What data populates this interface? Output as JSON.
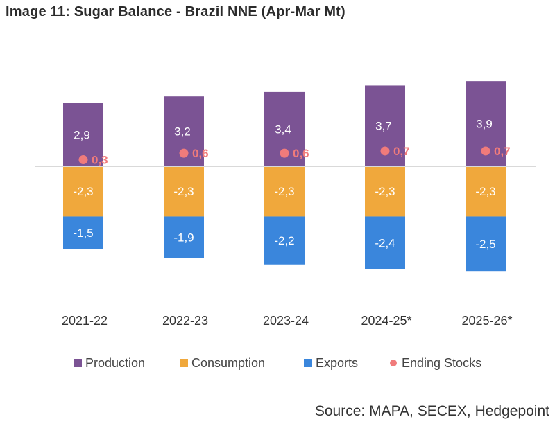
{
  "title": "Image 11: Sugar Balance - Brazil NNE (Apr-Mar Mt)",
  "source": "Source: MAPA, SECEX, Hedgepoint",
  "colors": {
    "production": "#7b5394",
    "consumption": "#f0a83c",
    "exports": "#3a86dc",
    "ending_stocks": "#f07b7b",
    "zero_line": "#d9d9d9"
  },
  "chart_data": {
    "type": "bar",
    "stacked": true,
    "categories": [
      "2021-22",
      "2022-23",
      "2023-24",
      "2024-25*",
      "2025-26*"
    ],
    "series": [
      {
        "name": "Production",
        "kind": "bar",
        "values": [
          2.9,
          3.2,
          3.4,
          3.7,
          3.9
        ],
        "labels": [
          "2,9",
          "3,2",
          "3,4",
          "3,7",
          "3,9"
        ]
      },
      {
        "name": "Consumption",
        "kind": "bar",
        "values": [
          -2.3,
          -2.3,
          -2.3,
          -2.3,
          -2.3
        ],
        "labels": [
          "-2,3",
          "-2,3",
          "-2,3",
          "-2,3",
          "-2,3"
        ]
      },
      {
        "name": "Exports",
        "kind": "bar",
        "values": [
          -1.5,
          -1.9,
          -2.2,
          -2.4,
          -2.5
        ],
        "labels": [
          "-1,5",
          "-1,9",
          "-2,2",
          "-2,4",
          "-2,5"
        ]
      },
      {
        "name": "Ending Stocks",
        "kind": "point",
        "values": [
          0.3,
          0.6,
          0.6,
          0.7,
          0.7
        ],
        "labels": [
          "0,3",
          "0,6",
          "0,6",
          "0,7",
          "0,7"
        ]
      }
    ],
    "legend_position": "bottom",
    "grid": false
  }
}
